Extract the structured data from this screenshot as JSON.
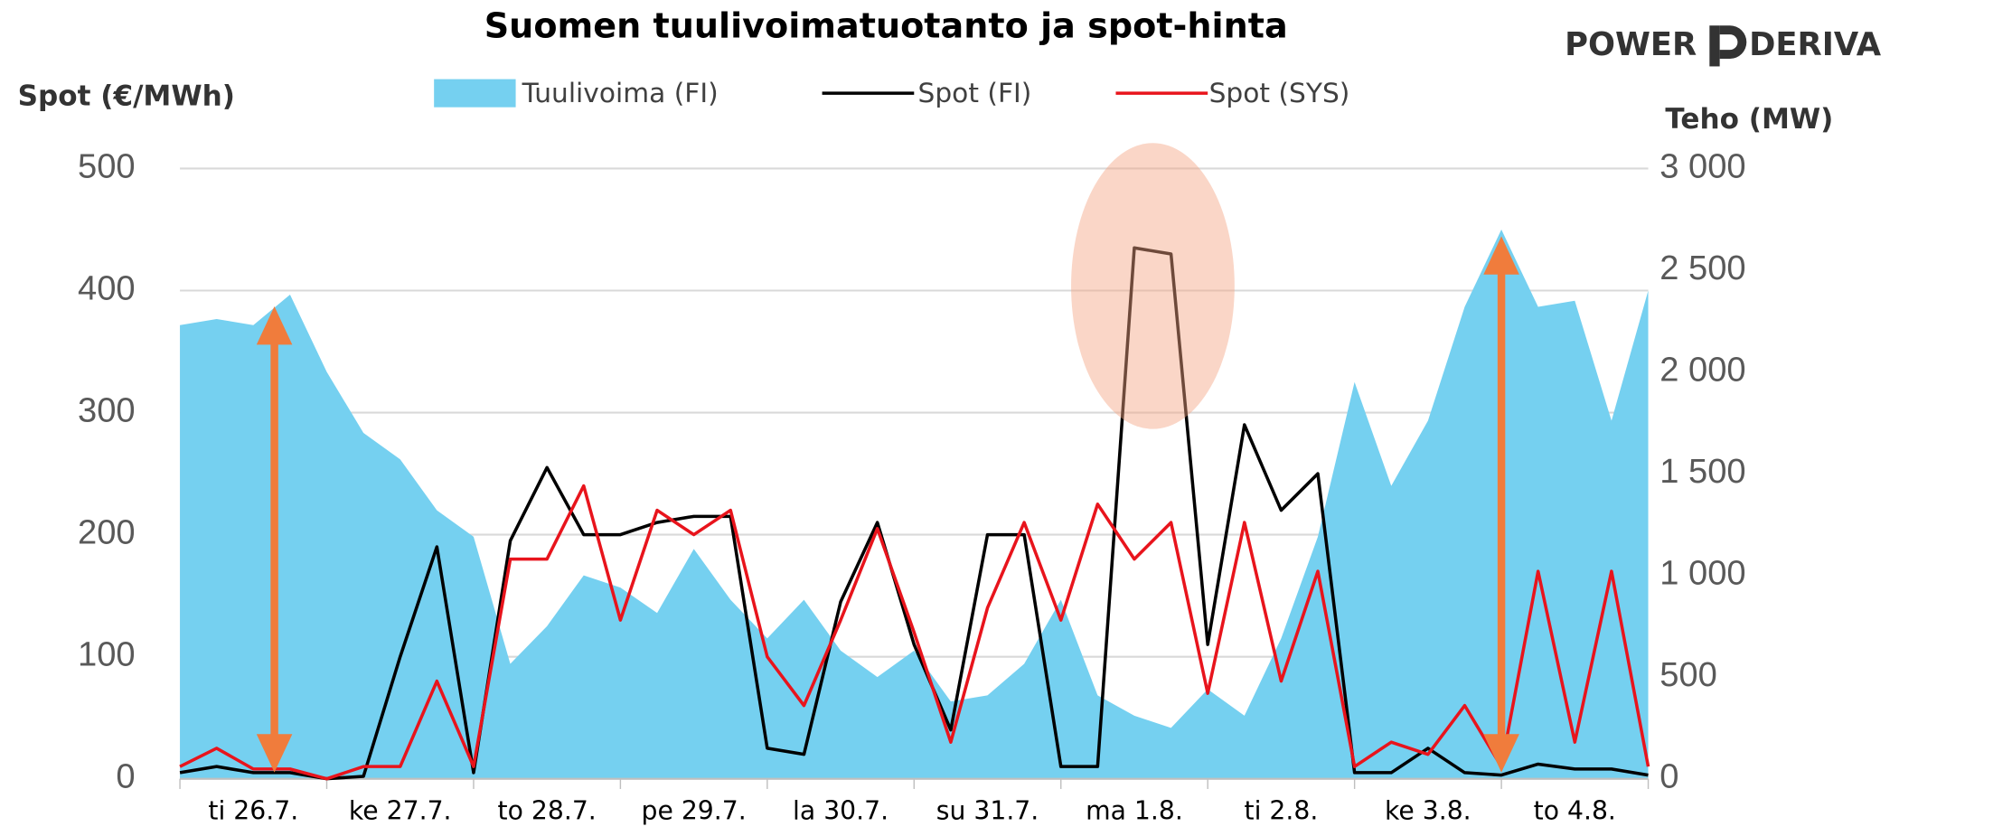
{
  "chart_data": {
    "type": "line",
    "title": "Suomen tuulivoimatuotanto ja spot-hinta",
    "logo": [
      "POWER",
      "DERIVA"
    ],
    "ylabel": "Spot (€/MWh)",
    "y2label": "Teho (MW)",
    "x": [
      0,
      0.25,
      0.5,
      0.75,
      1,
      1.25,
      1.5,
      1.75,
      2,
      2.25,
      2.5,
      2.75,
      3,
      3.25,
      3.5,
      3.75,
      4,
      4.25,
      4.5,
      4.75,
      5,
      5.25,
      5.5,
      5.75,
      6,
      6.25,
      6.5,
      6.75,
      7,
      7.25,
      7.5,
      7.75,
      8,
      8.25,
      8.5,
      8.75,
      9,
      9.25,
      9.5,
      9.75,
      10
    ],
    "xlim": [
      0,
      10
    ],
    "xticks": [
      {
        "value": 0.5,
        "label": "ti 26.7."
      },
      {
        "value": 1.5,
        "label": "ke 27.7."
      },
      {
        "value": 2.5,
        "label": "to 28.7."
      },
      {
        "value": 3.5,
        "label": "pe 29.7."
      },
      {
        "value": 4.5,
        "label": "la 30.7."
      },
      {
        "value": 5.5,
        "label": "su 31.7."
      },
      {
        "value": 6.5,
        "label": "ma 1.8."
      },
      {
        "value": 7.5,
        "label": "ti 2.8."
      },
      {
        "value": 8.5,
        "label": "ke 3.8."
      },
      {
        "value": 9.5,
        "label": "to 4.8."
      }
    ],
    "ylim": [
      0,
      500
    ],
    "yticks": [
      0,
      100,
      200,
      300,
      400,
      500
    ],
    "y2lim": [
      0,
      3000
    ],
    "y2ticks": [
      0,
      500,
      {
        "value": 1000,
        "label": "1 000"
      },
      {
        "value": 1500,
        "label": "1 500"
      },
      {
        "value": 2000,
        "label": "2 000"
      },
      {
        "value": 2500,
        "label": "2 500"
      },
      {
        "value": 3000,
        "label": "3 000"
      }
    ],
    "grid": true,
    "series": [
      {
        "name": "Tuulivoima (FI)",
        "type": "area",
        "axis": "y2",
        "color": "#75d0f0",
        "values": [
          2230,
          2260,
          2230,
          2380,
          2000,
          1700,
          1570,
          1320,
          1190,
          565,
          750,
          1000,
          940,
          815,
          1130,
          880,
          690,
          880,
          630,
          500,
          630,
          380,
          410,
          565,
          880,
          410,
          310,
          250,
          440,
          310,
          690,
          1190,
          1950,
          1440,
          1760,
          2320,
          2700,
          2320,
          2350,
          1760,
          2400
        ]
      },
      {
        "name": "Spot (FI)",
        "type": "line",
        "color": "#000000",
        "values": [
          5,
          10,
          5,
          5,
          0,
          2,
          100,
          190,
          5,
          195,
          255,
          200,
          200,
          210,
          215,
          215,
          25,
          20,
          145,
          210,
          110,
          40,
          200,
          200,
          10,
          10,
          435,
          430,
          110,
          290,
          220,
          250,
          5,
          5,
          25,
          5,
          3,
          12,
          8,
          8,
          3
        ]
      },
      {
        "name": "Spot (SYS)",
        "type": "line",
        "color": "#e8141c",
        "values": [
          10,
          25,
          8,
          8,
          0,
          10,
          10,
          80,
          10,
          180,
          180,
          240,
          130,
          220,
          200,
          220,
          100,
          60,
          130,
          205,
          120,
          30,
          140,
          210,
          130,
          225,
          180,
          210,
          70,
          210,
          80,
          170,
          10,
          30,
          20,
          60,
          10,
          170,
          30,
          170,
          10
        ]
      }
    ]
  }
}
